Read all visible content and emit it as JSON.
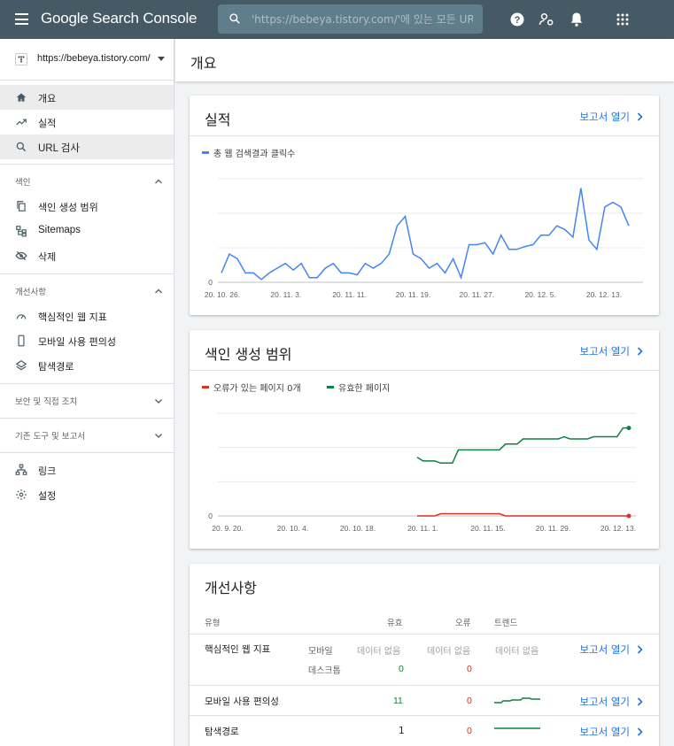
{
  "header": {
    "brand": "Google Search Console",
    "search_placeholder": "'https://bebeya.tistory.com/'에 있는 모든 URL 검사"
  },
  "sidebar": {
    "property": "https://bebeya.tistory.com/",
    "items": [
      {
        "label": "개요"
      },
      {
        "label": "실적"
      },
      {
        "label": "URL 검사"
      }
    ],
    "sections": [
      {
        "label": "색인",
        "items": [
          {
            "label": "색인 생성 범위"
          },
          {
            "label": "Sitemaps"
          },
          {
            "label": "삭제"
          }
        ]
      },
      {
        "label": "개선사항",
        "items": [
          {
            "label": "핵심적인 웹 지표"
          },
          {
            "label": "모바일 사용 편의성"
          },
          {
            "label": "탐색경로"
          }
        ]
      },
      {
        "label": "보안 및 직접 조치"
      },
      {
        "label": "기존 도구 및 보고서"
      }
    ],
    "bottom": [
      {
        "label": "링크"
      },
      {
        "label": "설정"
      }
    ]
  },
  "page": {
    "title": "개요"
  },
  "performance": {
    "title": "실적",
    "open": "보고서 열기",
    "legend": "총 웹 검색결과 클릭수",
    "color": "#4285f4"
  },
  "coverage": {
    "title": "색인 생성 범위",
    "open": "보고서 열기",
    "legend_error": "오류가 있는 페이지 0개",
    "legend_valid": "유효한 페이지",
    "color_error": "#d93025",
    "color_valid": "#0d8043"
  },
  "enhancements": {
    "title": "개선사항",
    "headers": {
      "type": "유형",
      "valid": "유효",
      "error": "오류",
      "trend": "트렌드"
    },
    "rows": [
      {
        "type": "핵심적인 웹 지표",
        "sub1": "모바일",
        "valid1": "데이터 없음",
        "error1": "데이터 없음",
        "trend1": "데이터 없음",
        "sub2": "데스크톱",
        "valid2": "0",
        "error2": "0",
        "open": "보고서 열기"
      },
      {
        "type": "모바일 사용 편의성",
        "valid": "11",
        "error": "0",
        "open": "보고서 열기"
      },
      {
        "type": "탐색경로",
        "valid": "1",
        "error": "0",
        "open": "보고서 열기"
      }
    ]
  },
  "chart_data": [
    {
      "type": "line",
      "name": "performance",
      "x_ticks": [
        "20. 10. 26.",
        "20. 11. 3.",
        "20. 11. 11.",
        "20. 11. 19.",
        "20. 11. 27.",
        "20. 12. 5.",
        "20. 12. 13."
      ],
      "y_ticks": [
        "0"
      ],
      "series": [
        {
          "name": "총 웹 검색결과 클릭수",
          "values": [
            1,
            3,
            2.5,
            1,
            1,
            0.3,
            1,
            1.5,
            2,
            1.3,
            2,
            0.5,
            0.5,
            1.5,
            2,
            1,
            1,
            0.8,
            2,
            1.5,
            2,
            3,
            6,
            7,
            3,
            2.5,
            1.5,
            2,
            1,
            2.5,
            0.5,
            4,
            4,
            4.2,
            3,
            5,
            3.5,
            3.5,
            3.8,
            4,
            5,
            5,
            6,
            5.6,
            4.8,
            10,
            4.5,
            3.5,
            8,
            8.5,
            8,
            6
          ]
        }
      ]
    },
    {
      "type": "line",
      "name": "coverage",
      "x_ticks": [
        "20. 9. 20.",
        "20. 10. 4.",
        "20. 10. 18.",
        "20. 11. 1.",
        "20. 11. 15.",
        "20. 11. 29.",
        "20. 12. 13."
      ],
      "y_ticks": [
        "0"
      ],
      "series": [
        {
          "name": "유효한 페이지",
          "values": [
            8,
            7.5,
            7.5,
            7.5,
            7.2,
            7.2,
            7.2,
            9,
            9,
            9,
            9,
            9,
            9,
            9,
            9,
            9.8,
            9.8,
            9.8,
            10.5,
            10.5,
            10.5,
            10.5,
            10.5,
            10.5,
            10.5,
            10.8,
            10.5,
            10.5,
            10.5,
            10.5,
            10.8,
            10.8,
            10.8,
            10.8,
            10.8,
            12,
            12
          ]
        },
        {
          "name": "오류가 있는 페이지",
          "values": [
            0,
            0,
            0,
            0,
            0.3,
            0.3,
            0.3,
            0.3,
            0.3,
            0.3,
            0.3,
            0.3,
            0.3,
            0.3,
            0.3,
            0,
            0,
            0,
            0,
            0,
            0,
            0,
            0,
            0,
            0,
            0,
            0,
            0,
            0,
            0,
            0,
            0,
            0,
            0,
            0,
            0,
            0
          ]
        }
      ]
    }
  ]
}
